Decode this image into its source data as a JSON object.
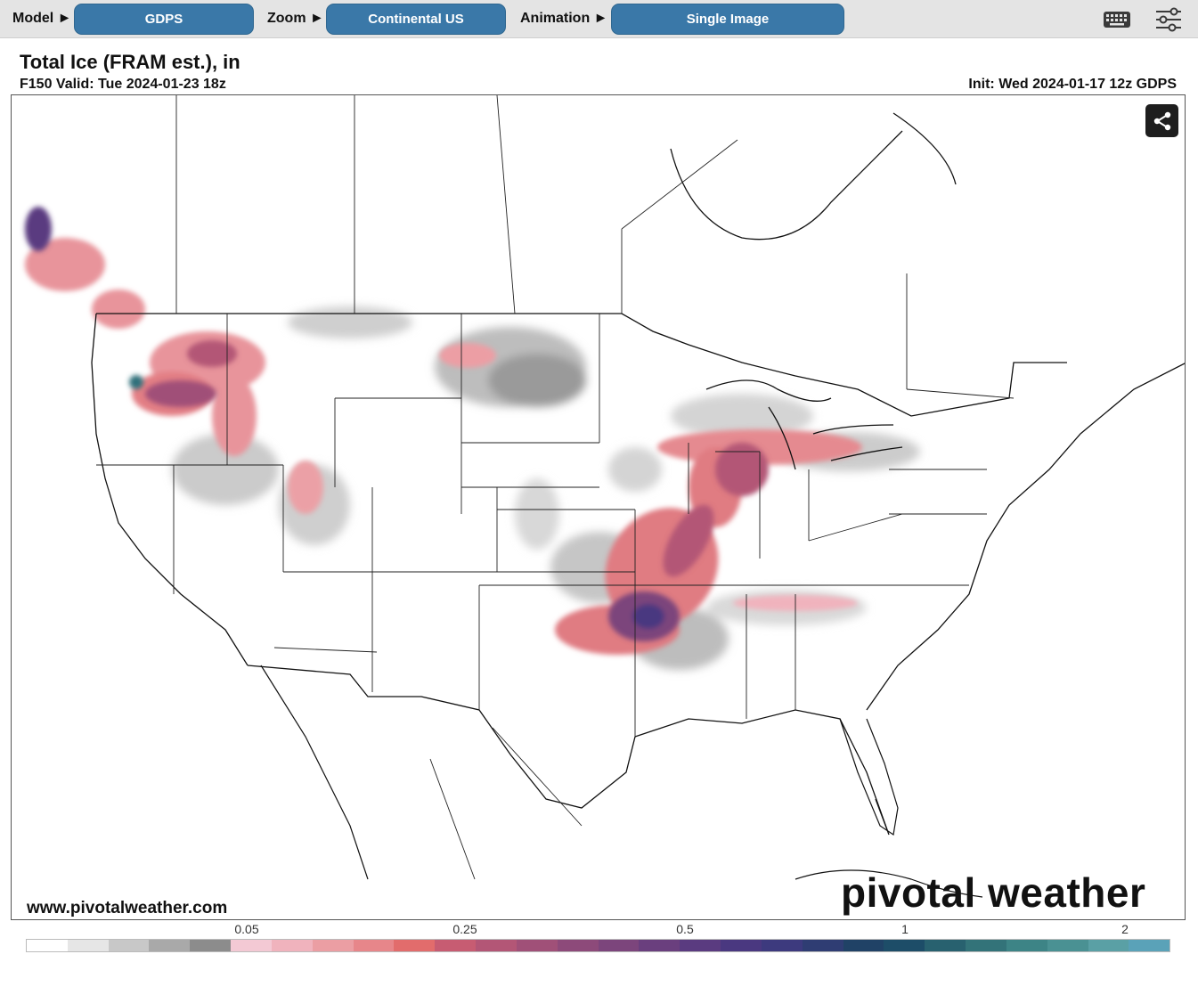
{
  "toolbar": {
    "model_label": "Model ►",
    "model_value": "GDPS",
    "zoom_label": "Zoom ►",
    "zoom_value": "Continental US",
    "animation_label": "Animation ►",
    "animation_value": "Single Image",
    "icons": [
      "keyboard-icon",
      "settings-sliders-icon"
    ]
  },
  "header": {
    "title": "Total Ice (FRAM est.), in",
    "valid": "F150 Valid: Tue 2024-01-23 18z",
    "init": "Init: Wed 2024-01-17 12z GDPS"
  },
  "map": {
    "share_icon": "share-icon",
    "site_url": "www.pivotalweather.com",
    "logo_text": "pivotal weather"
  },
  "colorbar": {
    "labels": [
      "0.05",
      "0.25",
      "0.5",
      "1",
      "2"
    ],
    "colors": [
      "#ffffff",
      "#e6e6e6",
      "#c8c8c8",
      "#a9a9a9",
      "#8c8c8c",
      "#f3c9d4",
      "#f0b3bd",
      "#eb9ea3",
      "#e7868a",
      "#e26c6c",
      "#c75c72",
      "#b35676",
      "#a05078",
      "#8d4a7a",
      "#7c457c",
      "#6a3f7e",
      "#5a3b80",
      "#4a3880",
      "#3d3a7e",
      "#2f3d73",
      "#204266",
      "#1d4d68",
      "#28616f",
      "#337379",
      "#3d8486",
      "#4a9193",
      "#5aa0a5",
      "#5aa2b8"
    ]
  },
  "colors": {
    "toolbar_bg": "#e4e4e4",
    "button_blue": "#3a78a8"
  }
}
